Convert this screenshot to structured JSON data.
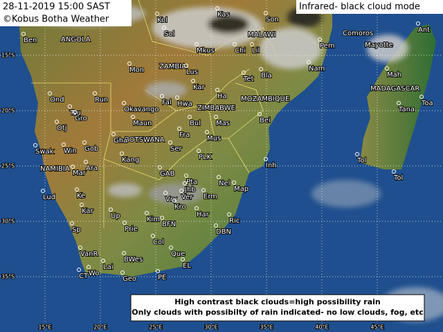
{
  "header": {
    "timestamp": "28-11-2019 15:00 SAST",
    "credit": "©Kobus Botha Weather",
    "mode": "Infrared- black cloud mode"
  },
  "legend": {
    "line1": "High contrast black clouds=high possibility rain",
    "line2": "Only clouds with possibilty of rain indicated- no low clouds, fog, etc"
  },
  "latitudes": [
    "15°S",
    "20°S",
    "25°S",
    "30°S",
    "35°S"
  ],
  "longitudes": [
    "15°E",
    "20°E",
    "25°E",
    "30°E",
    "35°E",
    "40°E",
    "45°E"
  ],
  "countries": [
    "ANGOLA",
    "MALAWI",
    "ZAMBIA",
    "MADAGASCAR",
    "MOZAMBIQUE",
    "ZIMBABWE",
    "BOTSWANA",
    "NAMIBIA",
    "Comoros",
    "Mayotte"
  ],
  "places": [
    "Ben",
    "Kol",
    "Kas",
    "Son",
    "Sol",
    "Ant",
    "Pem",
    "Chi",
    "Lil",
    "Mkus",
    "Mon",
    "Lus",
    "Bla",
    "Nam",
    "Mah",
    "Tet",
    "Kar",
    "Ha",
    "Ond",
    "Run",
    "Tana",
    "Toa",
    "Fal",
    "Hwa",
    "Tsu",
    "Okavango",
    "Gro",
    "Bul",
    "Mas",
    "Bei",
    "Maun",
    "Otj",
    "Fra",
    "Gha",
    "Mus",
    "Swak",
    "Win",
    "Gob",
    "Ser",
    "Kang",
    "PLK",
    "Tol",
    "Inh",
    "Ara",
    "Mar",
    "GAB",
    "Nel",
    "Pta",
    "Jhb",
    "Map",
    "Tol",
    "Lud",
    "Ke",
    "Vry",
    "Erm",
    "Ver",
    "Kro",
    "Kar",
    "Up",
    "Har",
    "Kim",
    "Ric",
    "Sp",
    "Prie",
    "BFN",
    "DBN",
    "Col",
    "VanR",
    "BWes",
    "Que",
    "Lai",
    "EL",
    "CT",
    "Wo",
    "Geo",
    "PE"
  ]
}
